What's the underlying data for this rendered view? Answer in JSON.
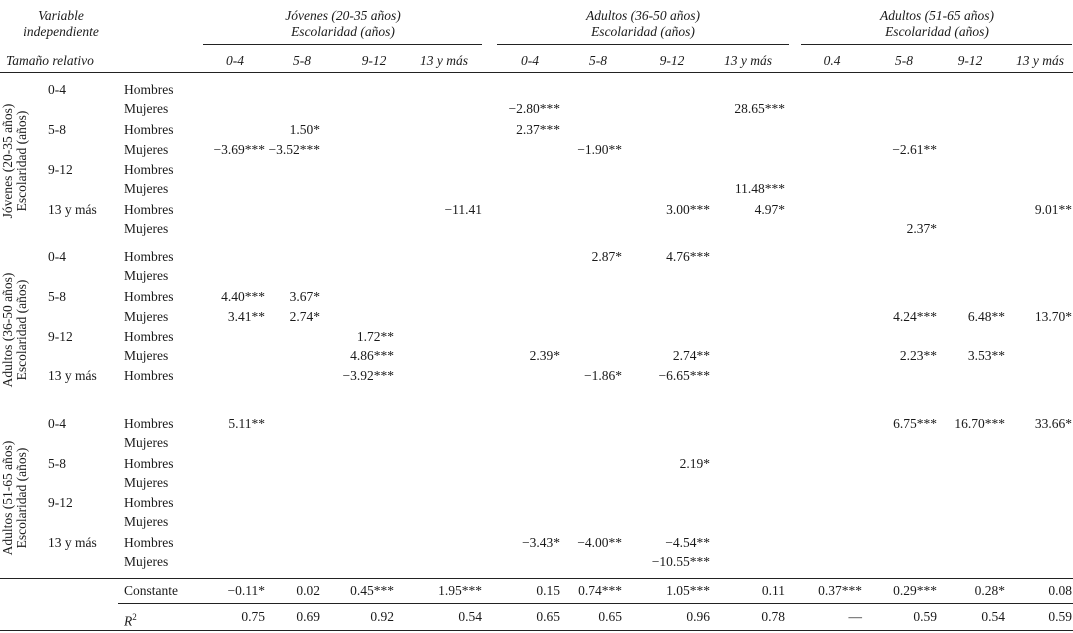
{
  "header": {
    "var_indep_1": "Variable",
    "var_indep_2": "independiente",
    "tam_rel": "Tamaño relativo",
    "groups": [
      {
        "title": "Jóvenes (20-35 años)",
        "sub": "Escolaridad (años)"
      },
      {
        "title": "Adultos (36-50 años)",
        "sub": "Escolaridad (años)"
      },
      {
        "title": "Adultos (51-65 años)",
        "sub": "Escolaridad (años)"
      }
    ],
    "cols": [
      "0-4",
      "5-8",
      "9-12",
      "13 y más",
      "0-4",
      "5-8",
      "9-12",
      "13 y más",
      "0.4",
      "5-8",
      "9-12",
      "13 y más"
    ]
  },
  "blocks": [
    {
      "label_1": "Jóvenes (20-35 años)",
      "label_2": "Escolaridad (años)"
    },
    {
      "label_1": "Adultos (36-50 años)",
      "label_2": "Escolaridad (años)"
    },
    {
      "label_1": "Adultos (51-65 años)",
      "label_2": "Escolaridad (años)"
    }
  ],
  "rows": [
    {
      "edu": "0-4",
      "sex": "Hombres",
      "v": [
        "",
        "",
        "",
        "",
        "",
        "",
        "",
        "",
        "",
        "",
        "",
        ""
      ]
    },
    {
      "edu": "",
      "sex": "Mujeres",
      "v": [
        "",
        "",
        "",
        "",
        "−2.80***",
        "",
        "",
        "28.65***",
        "",
        "",
        "",
        ""
      ]
    },
    {
      "edu": "5-8",
      "sex": "Hombres",
      "v": [
        "",
        "1.50*",
        "",
        "",
        "2.37***",
        "",
        "",
        "",
        "",
        "",
        "",
        ""
      ]
    },
    {
      "edu": "",
      "sex": "Mujeres",
      "v": [
        "−3.69***",
        "−3.52***",
        "",
        "",
        "",
        "−1.90**",
        "",
        "",
        "",
        "−2.61**",
        "",
        ""
      ]
    },
    {
      "edu": "9-12",
      "sex": "Hombres",
      "v": [
        "",
        "",
        "",
        "",
        "",
        "",
        "",
        "",
        "",
        "",
        "",
        ""
      ]
    },
    {
      "edu": "",
      "sex": "Mujeres",
      "v": [
        "",
        "",
        "",
        "",
        "",
        "",
        "",
        "11.48***",
        "",
        "",
        "",
        ""
      ]
    },
    {
      "edu": "13 y más",
      "sex": "Hombres",
      "v": [
        "",
        "",
        "",
        "−11.41",
        "",
        "",
        "3.00***",
        "4.97*",
        "",
        "",
        "",
        "9.01**"
      ]
    },
    {
      "edu": "",
      "sex": "Mujeres",
      "v": [
        "",
        "",
        "",
        "",
        "",
        "",
        "",
        "",
        "",
        "2.37*",
        "",
        ""
      ]
    },
    {
      "edu": "0-4",
      "sex": "Hombres",
      "v": [
        "",
        "",
        "",
        "",
        "",
        "2.87*",
        "4.76***",
        "",
        "",
        "",
        "",
        ""
      ]
    },
    {
      "edu": "",
      "sex": "Mujeres",
      "v": [
        "",
        "",
        "",
        "",
        "",
        "",
        "",
        "",
        "",
        "",
        "",
        ""
      ]
    },
    {
      "edu": "5-8",
      "sex": "Hombres",
      "v": [
        "4.40***",
        "3.67*",
        "",
        "",
        "",
        "",
        "",
        "",
        "",
        "",
        "",
        ""
      ]
    },
    {
      "edu": "",
      "sex": "Mujeres",
      "v": [
        "3.41**",
        "2.74*",
        "",
        "",
        "",
        "",
        "",
        "",
        "",
        "4.24***",
        "6.48**",
        "13.70*"
      ]
    },
    {
      "edu": "9-12",
      "sex": "Hombres",
      "v": [
        "",
        "",
        "1.72**",
        "",
        "",
        "",
        "",
        "",
        "",
        "",
        "",
        ""
      ]
    },
    {
      "edu": "",
      "sex": "Mujeres",
      "v": [
        "",
        "",
        "4.86***",
        "",
        "2.39*",
        "",
        "2.74**",
        "",
        "",
        "2.23**",
        "3.53**",
        ""
      ]
    },
    {
      "edu": "13 y más",
      "sex": "Hombres",
      "v": [
        "",
        "",
        "−3.92***",
        "",
        "",
        "−1.86*",
        "−6.65***",
        "",
        "",
        "",
        "",
        ""
      ]
    },
    {
      "edu": "0-4",
      "sex": "Hombres",
      "v": [
        "5.11**",
        "",
        "",
        "",
        "",
        "",
        "",
        "",
        "",
        "6.75***",
        "16.70***",
        "33.66*"
      ]
    },
    {
      "edu": "",
      "sex": "Mujeres",
      "v": [
        "",
        "",
        "",
        "",
        "",
        "",
        "",
        "",
        "",
        "",
        "",
        ""
      ]
    },
    {
      "edu": "5-8",
      "sex": "Hombres",
      "v": [
        "",
        "",
        "",
        "",
        "",
        "",
        "2.19*",
        "",
        "",
        "",
        "",
        ""
      ]
    },
    {
      "edu": "",
      "sex": "Mujeres",
      "v": [
        "",
        "",
        "",
        "",
        "",
        "",
        "",
        "",
        "",
        "",
        "",
        ""
      ]
    },
    {
      "edu": "9-12",
      "sex": "Hombres",
      "v": [
        "",
        "",
        "",
        "",
        "",
        "",
        "",
        "",
        "",
        "",
        "",
        ""
      ]
    },
    {
      "edu": "",
      "sex": "Mujeres",
      "v": [
        "",
        "",
        "",
        "",
        "",
        "",
        "",
        "",
        "",
        "",
        "",
        ""
      ]
    },
    {
      "edu": "13 y más",
      "sex": "Hombres",
      "v": [
        "",
        "",
        "",
        "",
        "−3.43*",
        "−4.00**",
        "−4.54**",
        "",
        "",
        "",
        "",
        ""
      ]
    },
    {
      "edu": "",
      "sex": "Mujeres",
      "v": [
        "",
        "",
        "",
        "",
        "",
        "",
        "−10.55***",
        "",
        "",
        "",
        "",
        ""
      ]
    }
  ],
  "constante": {
    "label": "Constante",
    "v": [
      "−0.11*",
      "0.02",
      "0.45***",
      "1.95***",
      "0.15",
      "0.74***",
      "1.05***",
      "0.11",
      "0.37***",
      "0.29***",
      "0.28*",
      "0.08"
    ]
  },
  "r2": {
    "label": "R",
    "sup": "2",
    "v": [
      "0.75",
      "0.69",
      "0.92",
      "0.54",
      "0.65",
      "0.65",
      "0.96",
      "0.78",
      "—",
      "0.59",
      "0.54",
      "0.59"
    ]
  }
}
